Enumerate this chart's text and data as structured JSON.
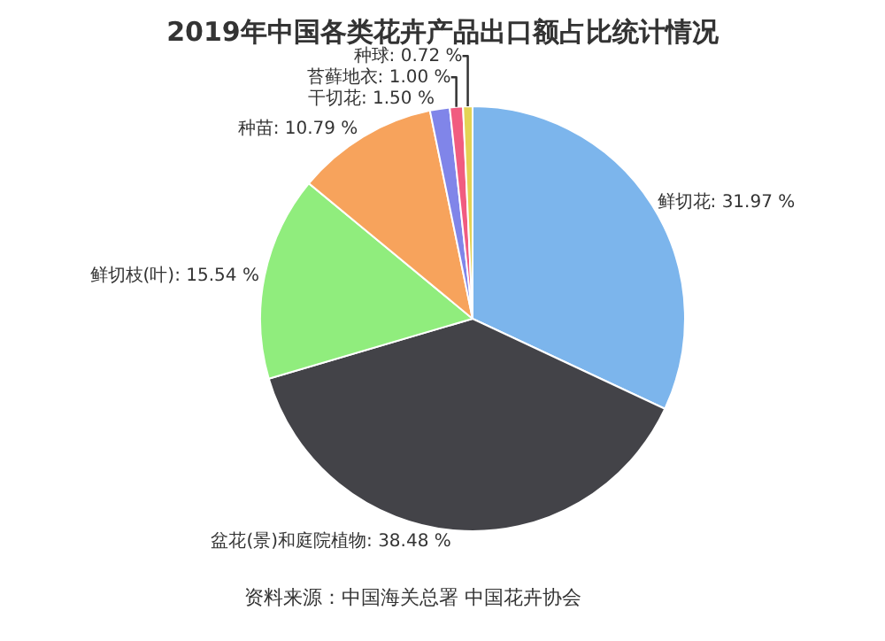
{
  "chart_data": {
    "type": "pie",
    "title": "2019年中国各类花卉产品出口额占比统计情况",
    "categories": [
      "鲜切花",
      "盆花(景)和庭院植物",
      "鲜切枝(叶)",
      "种苗",
      "干切花",
      "苔藓地衣",
      "种球"
    ],
    "values": [
      31.97,
      38.48,
      15.54,
      10.79,
      1.5,
      1.0,
      0.72
    ],
    "value_labels": [
      "31.97 %",
      "38.48 %",
      "15.54 %",
      "10.79 %",
      "1.50 %",
      "1.00 %",
      "0.72 %"
    ],
    "colors": [
      "#7cb5ec",
      "#434348",
      "#90ed7d",
      "#f7a35c",
      "#8085e9",
      "#f15c80",
      "#e4d354"
    ],
    "legend": false,
    "annotations": [
      "资料来源：中国海关总署 中国花卉协会"
    ]
  }
}
